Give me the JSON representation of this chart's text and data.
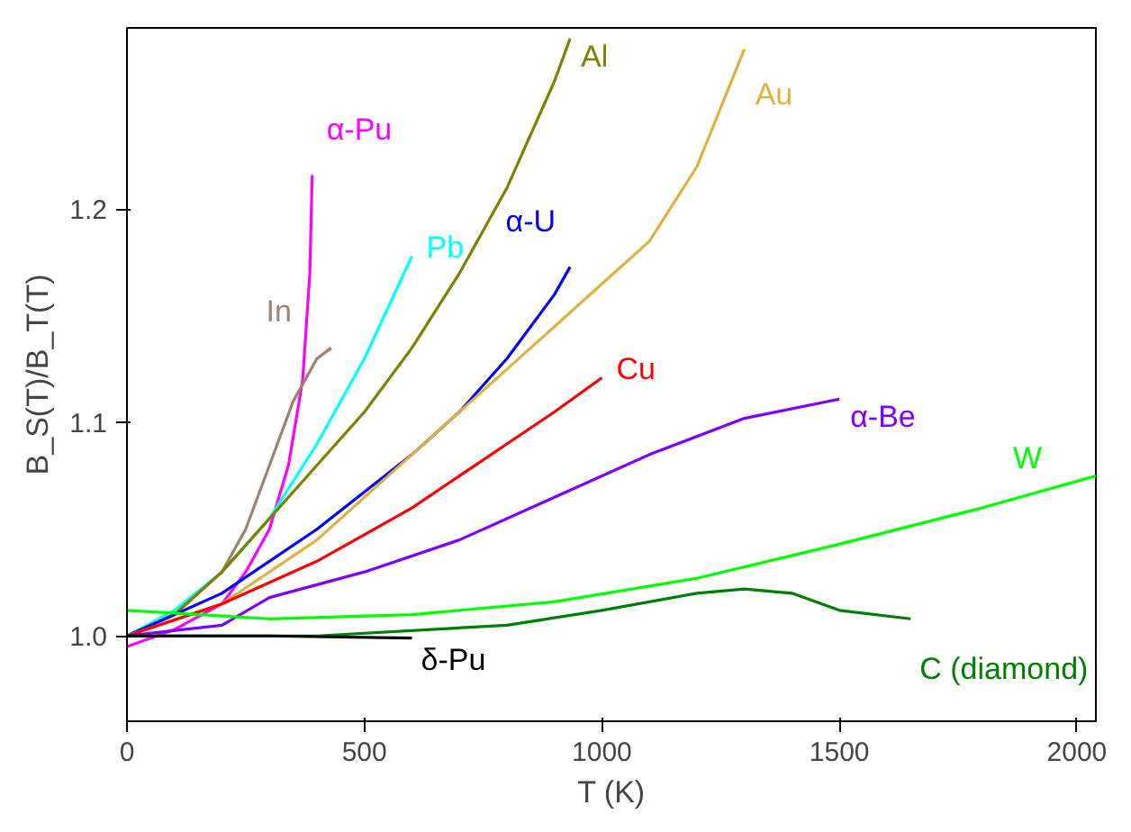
{
  "chart_data": {
    "type": "line",
    "xlabel": "T (K)",
    "ylabel": "B_S(T)/B_T(T)",
    "xlim": [
      0,
      2040
    ],
    "ylim": [
      0.96,
      1.285
    ],
    "xticks": [
      0,
      500,
      1000,
      1500,
      2000
    ],
    "yticks": [
      {
        "value": 1.0,
        "label": "1.0"
      },
      1.1,
      1.2
    ],
    "grid": false,
    "line_style": "solid",
    "series": [
      {
        "name": "α-Pu",
        "color": "#ff00ff",
        "x": [
          0,
          100,
          200,
          250,
          300,
          340,
          370,
          385,
          390
        ],
        "values": [
          0.995,
          1.003,
          1.015,
          1.03,
          1.05,
          1.08,
          1.12,
          1.17,
          1.216
        ]
      },
      {
        "name": "Pb",
        "color": "#00ffff",
        "x": [
          0,
          100,
          200,
          300,
          400,
          500,
          600
        ],
        "values": [
          1.0,
          1.012,
          1.03,
          1.055,
          1.09,
          1.13,
          1.178
        ]
      },
      {
        "name": "In",
        "color": "#a08070",
        "x": [
          0,
          100,
          200,
          250,
          300,
          350,
          400,
          430
        ],
        "values": [
          1.0,
          1.01,
          1.03,
          1.05,
          1.08,
          1.11,
          1.13,
          1.135
        ]
      },
      {
        "name": "Al",
        "color": "#808000",
        "x": [
          0,
          100,
          200,
          300,
          400,
          500,
          600,
          700,
          800,
          900,
          933
        ],
        "values": [
          1.0,
          1.01,
          1.03,
          1.055,
          1.08,
          1.105,
          1.135,
          1.17,
          1.21,
          1.26,
          1.28
        ]
      },
      {
        "name": "α-U",
        "color": "#0000ff",
        "x": [
          0,
          200,
          400,
          600,
          700,
          800,
          900,
          933
        ],
        "values": [
          1.0,
          1.02,
          1.05,
          1.085,
          1.105,
          1.13,
          1.16,
          1.173
        ]
      },
      {
        "name": "Au",
        "color": "#e0b040",
        "x": [
          0,
          200,
          400,
          600,
          800,
          1000,
          1100,
          1200,
          1300
        ],
        "values": [
          1.0,
          1.015,
          1.045,
          1.085,
          1.125,
          1.165,
          1.185,
          1.22,
          1.275
        ]
      },
      {
        "name": "Cu",
        "color": "#ff0000",
        "x": [
          0,
          200,
          400,
          600,
          800,
          900,
          1000
        ],
        "values": [
          1.0,
          1.015,
          1.035,
          1.06,
          1.09,
          1.105,
          1.121
        ]
      },
      {
        "name": "α-Be",
        "color": "#8000ff",
        "x": [
          0,
          200,
          300,
          500,
          700,
          900,
          1100,
          1300,
          1500
        ],
        "values": [
          1.0,
          1.005,
          1.018,
          1.03,
          1.045,
          1.065,
          1.085,
          1.102,
          1.111
        ]
      },
      {
        "name": "W",
        "color": "#00ff00",
        "x": [
          0,
          300,
          600,
          900,
          1200,
          1500,
          1800,
          2040
        ],
        "values": [
          1.012,
          1.008,
          1.01,
          1.016,
          1.027,
          1.043,
          1.06,
          1.075
        ]
      },
      {
        "name": "C (diamond)",
        "color": "#008000",
        "x": [
          0,
          400,
          800,
          1000,
          1200,
          1300,
          1400,
          1500,
          1650
        ],
        "values": [
          1.0,
          1.0,
          1.005,
          1.012,
          1.02,
          1.022,
          1.02,
          1.012,
          1.008
        ]
      },
      {
        "name": "δ-Pu",
        "color": "#000000",
        "x": [
          0,
          300,
          600
        ],
        "values": [
          1.0,
          1.0,
          0.999
        ]
      }
    ]
  }
}
